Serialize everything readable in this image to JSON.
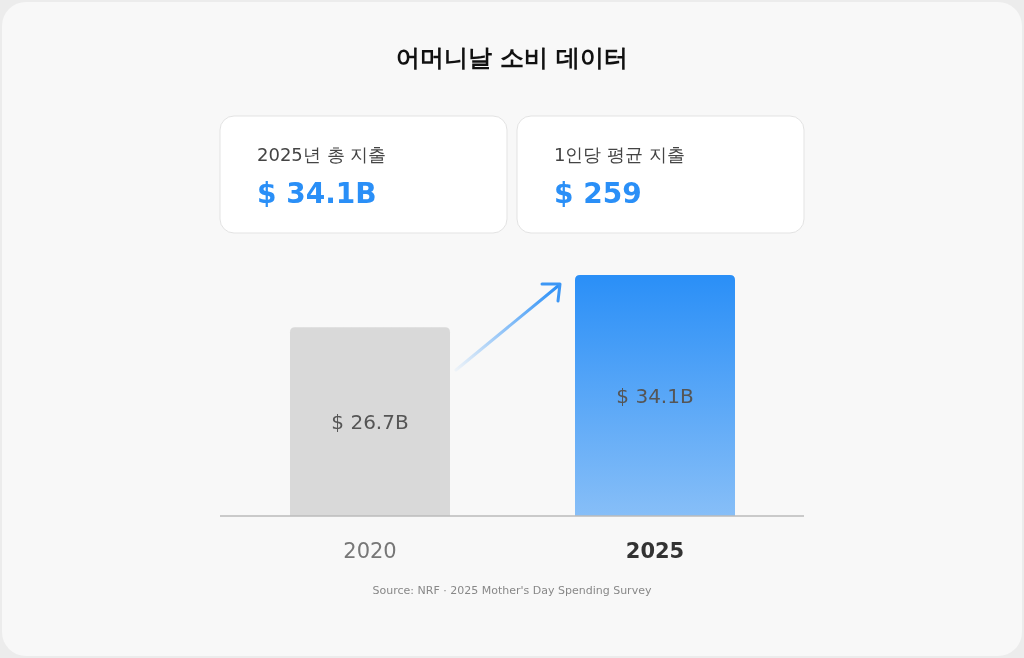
{
  "chart_data": [
    {
      "type": "bar",
      "title": "어머니날 소비 데이터",
      "categories": [
        "2020",
        "2025"
      ],
      "values": [
        26.7,
        34.1
      ],
      "colors": [
        "#d9d9d9",
        "#2a8ff7"
      ],
      "value_labels": [
        "$ 26.7B",
        "$ 34.1B"
      ],
      "annotations": [
        "Source: NRF · 2025 Mother's Day Spending Survey"
      ]
    },
    {
      "type": "other",
      "title": "2025년 총 지출",
      "annotations": [
        "$ 34.1B"
      ]
    },
    {
      "type": "other",
      "title": "1인당 평균 지출",
      "annotations": [
        "$ 259"
      ]
    }
  ]
}
